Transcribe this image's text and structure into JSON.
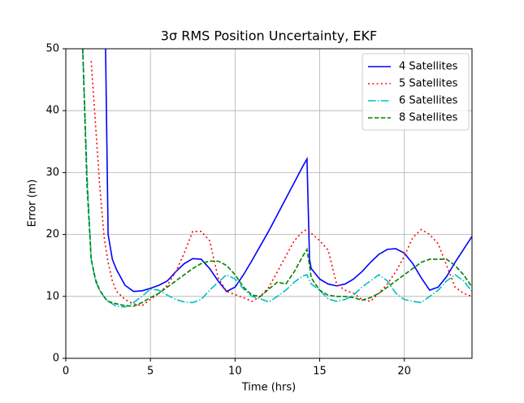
{
  "chart_data": {
    "type": "line",
    "title": "3σ RMS Position Uncertainty, EKF",
    "xlabel": "Time (hrs)",
    "ylabel": "Error (m)",
    "x": [
      1.0,
      1.25,
      1.5,
      1.75,
      2.0,
      2.25,
      2.35,
      2.5,
      2.75,
      3,
      3.5,
      4,
      4.5,
      5,
      5.5,
      6,
      6.5,
      7,
      7.5,
      8,
      8.5,
      9,
      9.5,
      10,
      10.5,
      11,
      11.5,
      12,
      12.5,
      13,
      13.5,
      14,
      14.25,
      14.4,
      14.5,
      15,
      15.5,
      16,
      16.5,
      17,
      17.5,
      18,
      18.5,
      19,
      19.5,
      20,
      20.5,
      21,
      21.5,
      22,
      22.5,
      23,
      23.5,
      24
    ],
    "series": [
      {
        "name": "4 Satellites",
        "color": "#0000ff",
        "style": "solid",
        "values": [
          null,
          null,
          null,
          null,
          null,
          null,
          50,
          20,
          16,
          14.3,
          11.8,
          10.8,
          10.9,
          11.3,
          11.8,
          12.5,
          14,
          15.3,
          16.1,
          16,
          14.5,
          12.5,
          10.8,
          11.5,
          13.5,
          15.8,
          18.2,
          20.6,
          23.2,
          25.8,
          28.4,
          31,
          32.2,
          16,
          14.5,
          12.8,
          12,
          11.7,
          12,
          12.8,
          14,
          15.5,
          16.8,
          17.6,
          17.7,
          17,
          15.3,
          13,
          11,
          11.5,
          13.2,
          15.5,
          17.6,
          19.7
        ]
      },
      {
        "name": "5 Satellites",
        "color": "#ff0000",
        "style": "dotted",
        "values": [
          null,
          null,
          48,
          38,
          28,
          20,
          18,
          15.5,
          12.5,
          10.8,
          9.5,
          8.8,
          8.5,
          9.5,
          10.5,
          11.8,
          14,
          17,
          20.5,
          20.5,
          19,
          13,
          10.8,
          10.3,
          9.8,
          9.2,
          10,
          11.5,
          14,
          16.5,
          19,
          20.5,
          20.8,
          20.5,
          20.2,
          19,
          17.5,
          12,
          11,
          10.5,
          9.5,
          9.2,
          10.5,
          12,
          14,
          16.5,
          19.5,
          20.8,
          20,
          18.5,
          15,
          11.5,
          10.5,
          10
        ]
      },
      {
        "name": "6 Satellites",
        "color": "#00bfbf",
        "style": "dashdot",
        "values": [
          50,
          30,
          16,
          12.5,
          11,
          10,
          9.6,
          9.2,
          8.8,
          8.4,
          8.3,
          9,
          10,
          11.2,
          11,
          10.2,
          9.5,
          9.1,
          9.0,
          9.5,
          11,
          12.3,
          13.5,
          12.8,
          11.2,
          10,
          9.6,
          9.1,
          10,
          11,
          12.3,
          13.3,
          13.5,
          12.5,
          12,
          11,
          9.6,
          9.2,
          9.5,
          10.2,
          11.5,
          12.5,
          13.5,
          12.5,
          10.5,
          9.5,
          9.2,
          9.0,
          10,
          11,
          12.5,
          13.5,
          12.5,
          10.8
        ]
      },
      {
        "name": "8 Satellites",
        "color": "#008000",
        "style": "dashed",
        "values": [
          50,
          28,
          16,
          12.8,
          11,
          10,
          9.6,
          9.2,
          9,
          8.8,
          8.5,
          8.4,
          9,
          9.8,
          10.5,
          11.5,
          12.5,
          13.5,
          14.5,
          15.3,
          15.7,
          15.7,
          15,
          13.5,
          11.5,
          10.2,
          10,
          11.2,
          12.3,
          12,
          14,
          16.5,
          17.6,
          15,
          13,
          11,
          10.2,
          10,
          10,
          9.8,
          9.4,
          9.8,
          10.5,
          11.5,
          12.5,
          13.5,
          14.5,
          15.5,
          16,
          16,
          16,
          15,
          13.5,
          11.5
        ]
      }
    ],
    "xlim": [
      0,
      24
    ],
    "ylim": [
      0,
      50
    ],
    "xticks": [
      0,
      5,
      10,
      15,
      20
    ],
    "yticks": [
      0,
      10,
      20,
      30,
      40,
      50
    ],
    "grid": true,
    "legend": "upper-right"
  }
}
